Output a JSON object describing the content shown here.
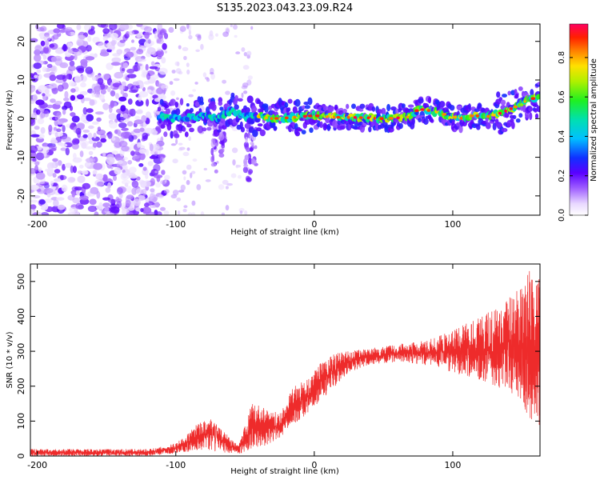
{
  "page_title": "S135.2023.043.23.09.R24",
  "colors": {
    "snr_line": "#ee2b2b",
    "frame": "#000000"
  },
  "chart_data": [
    {
      "type": "heatmap",
      "title": "S135.2023.043.23.09.R24",
      "xlabel": "Height of straight line (km)",
      "ylabel": "Frequency (Hz)",
      "xlim": [
        -205,
        163
      ],
      "ylim": [
        -25,
        24.5
      ],
      "xticks": [
        -200,
        -100,
        0,
        100
      ],
      "yticks": [
        -20,
        -10,
        0,
        10,
        20
      ],
      "colorbar": {
        "label": "Normalized spectral amplitude",
        "range": [
          0,
          0.97
        ],
        "ticks": [
          0.0,
          0.2,
          0.4,
          0.6,
          0.8
        ]
      },
      "ridge_frequency_hz": [
        {
          "x": -110,
          "y": 0.5
        },
        {
          "x": -100,
          "y": 0.0
        },
        {
          "x": -90,
          "y": 0.3
        },
        {
          "x": -80,
          "y": 0.8
        },
        {
          "x": -70,
          "y": 0.0
        },
        {
          "x": -60,
          "y": 2.0
        },
        {
          "x": -50,
          "y": 0.5
        },
        {
          "x": -40,
          "y": 0.5
        },
        {
          "x": -30,
          "y": 0.0
        },
        {
          "x": -20,
          "y": 0.2
        },
        {
          "x": -10,
          "y": 0.5
        },
        {
          "x": 0,
          "y": 0.8
        },
        {
          "x": 10,
          "y": 0.5
        },
        {
          "x": 20,
          "y": 0.3
        },
        {
          "x": 30,
          "y": 0.3
        },
        {
          "x": 40,
          "y": 0.2
        },
        {
          "x": 50,
          "y": 0.0
        },
        {
          "x": 60,
          "y": 0.2
        },
        {
          "x": 70,
          "y": 0.5
        },
        {
          "x": 75,
          "y": 2.5
        },
        {
          "x": 85,
          "y": 2.0
        },
        {
          "x": 95,
          "y": 1.0
        },
        {
          "x": 105,
          "y": 0.0
        },
        {
          "x": 115,
          "y": 0.8
        },
        {
          "x": 125,
          "y": 0.5
        },
        {
          "x": 135,
          "y": 1.5
        },
        {
          "x": 145,
          "y": 3.0
        },
        {
          "x": 155,
          "y": 5.0
        },
        {
          "x": 163,
          "y": 5.5
        }
      ]
    },
    {
      "type": "line",
      "xlabel": "Height of straight line (km)",
      "ylabel": "SNR (10 * v/v)",
      "xlim": [
        -205,
        163
      ],
      "ylim": [
        0,
        550
      ],
      "xticks": [
        -200,
        -100,
        0,
        100
      ],
      "yticks": [
        0,
        100,
        200,
        300,
        400,
        500
      ],
      "series": [
        {
          "envelope": [
            {
              "x": -205,
              "low": 0,
              "high": 20
            },
            {
              "x": -120,
              "low": 0,
              "high": 20
            },
            {
              "x": -105,
              "low": 5,
              "high": 30
            },
            {
              "x": -95,
              "low": 10,
              "high": 50
            },
            {
              "x": -85,
              "low": 15,
              "high": 90
            },
            {
              "x": -75,
              "low": 15,
              "high": 110
            },
            {
              "x": -65,
              "low": 10,
              "high": 70
            },
            {
              "x": -55,
              "low": 5,
              "high": 30
            },
            {
              "x": -45,
              "low": 20,
              "high": 150
            },
            {
              "x": -35,
              "low": 30,
              "high": 140
            },
            {
              "x": -25,
              "low": 50,
              "high": 120
            },
            {
              "x": -15,
              "low": 90,
              "high": 200
            },
            {
              "x": -5,
              "low": 120,
              "high": 220
            },
            {
              "x": 5,
              "low": 160,
              "high": 270
            },
            {
              "x": 15,
              "low": 200,
              "high": 300
            },
            {
              "x": 25,
              "low": 240,
              "high": 300
            },
            {
              "x": 40,
              "low": 260,
              "high": 310
            },
            {
              "x": 60,
              "low": 270,
              "high": 320
            },
            {
              "x": 80,
              "low": 260,
              "high": 330
            },
            {
              "x": 100,
              "low": 240,
              "high": 360
            },
            {
              "x": 115,
              "low": 220,
              "high": 390
            },
            {
              "x": 130,
              "low": 200,
              "high": 420
            },
            {
              "x": 145,
              "low": 170,
              "high": 470
            },
            {
              "x": 155,
              "low": 110,
              "high": 540
            },
            {
              "x": 163,
              "low": 80,
              "high": 520
            }
          ]
        }
      ]
    }
  ]
}
